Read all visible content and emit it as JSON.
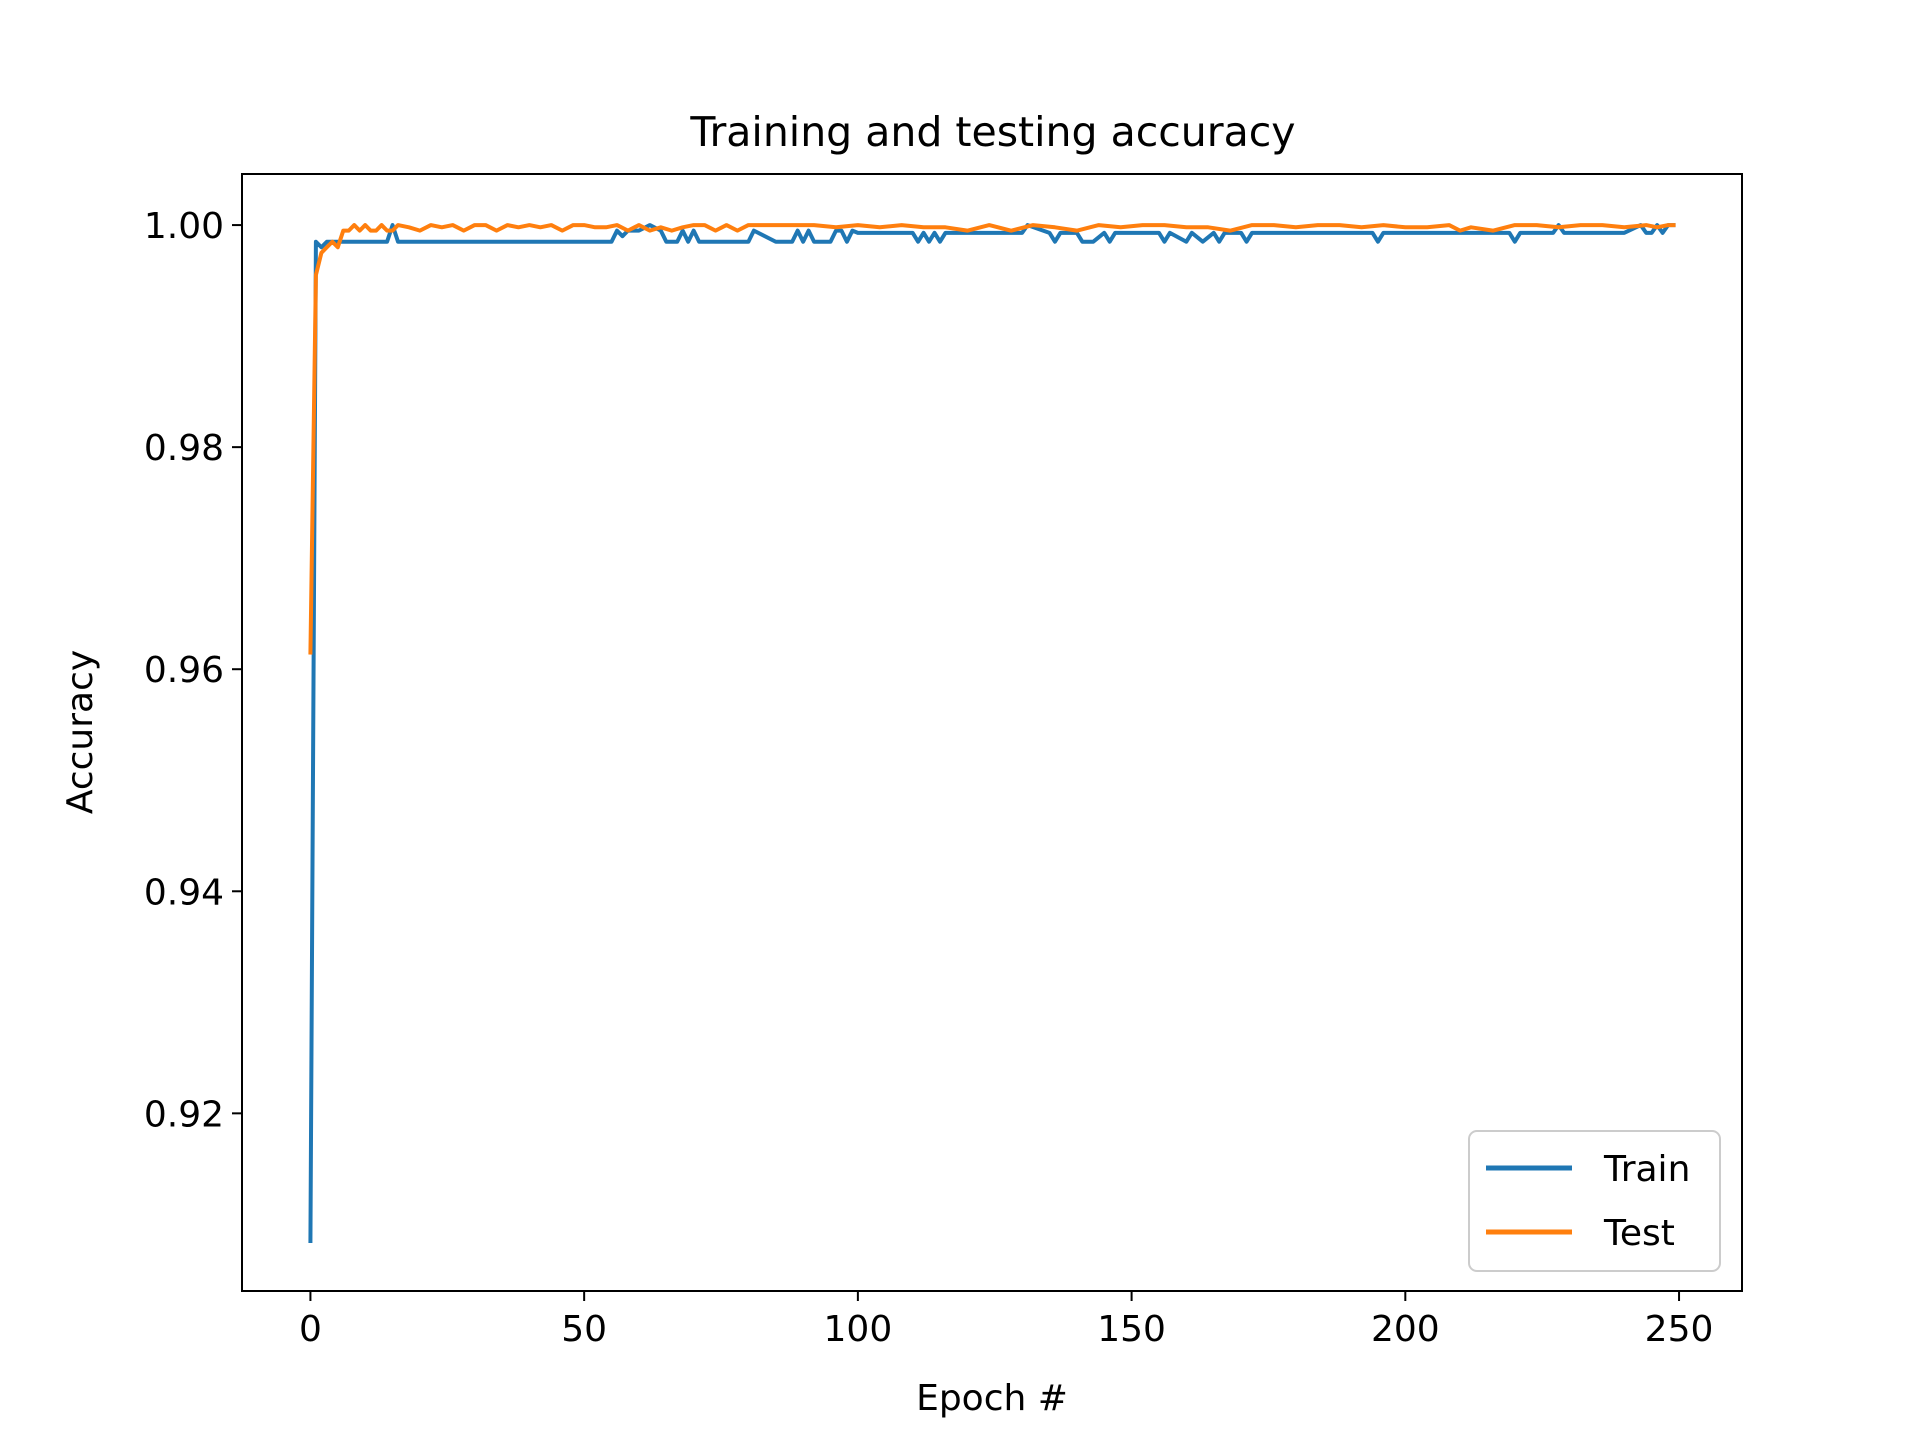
{
  "chart_data": {
    "type": "line",
    "title": "Training and testing accuracy",
    "xlabel": "Epoch #",
    "ylabel": "Accuracy",
    "xlim": [
      -12.5,
      261.5
    ],
    "ylim": [
      0.904,
      1.0046
    ],
    "xticks": [
      0,
      50,
      100,
      150,
      200,
      250
    ],
    "xtick_labels": [
      "0",
      "50",
      "100",
      "150",
      "200",
      "250"
    ],
    "yticks": [
      0.92,
      0.94,
      0.96,
      0.98,
      1.0
    ],
    "ytick_labels": [
      "0.92",
      "0.94",
      "0.96",
      "0.98",
      "1.00"
    ],
    "grid": false,
    "legend_position": "lower-right",
    "series": [
      {
        "name": "Train",
        "color": "#1f77b4",
        "x": [
          0,
          1,
          2,
          3,
          5,
          10,
          14,
          15,
          16,
          20,
          30,
          40,
          50,
          55,
          56,
          57,
          58,
          60,
          62,
          64,
          65,
          67,
          68,
          69,
          70,
          71,
          72,
          74,
          75,
          80,
          81,
          85,
          88,
          89,
          90,
          91,
          92,
          95,
          96,
          97,
          98,
          99,
          100,
          105,
          110,
          111,
          112,
          113,
          114,
          115,
          116,
          118,
          120,
          125,
          130,
          131,
          135,
          136,
          137,
          140,
          141,
          143,
          145,
          146,
          147,
          150,
          155,
          156,
          157,
          160,
          161,
          163,
          165,
          166,
          167,
          170,
          171,
          172,
          175,
          180,
          185,
          190,
          194,
          195,
          196,
          200,
          205,
          210,
          215,
          219,
          220,
          221,
          225,
          227,
          228,
          229,
          230,
          235,
          238,
          240,
          243,
          244,
          245,
          246,
          247,
          248,
          249
        ],
        "y": [
          0.9085,
          0.9985,
          0.998,
          0.9985,
          0.9985,
          0.9985,
          0.9985,
          1.0,
          0.9985,
          0.9985,
          0.9985,
          0.9985,
          0.9985,
          0.9985,
          0.9995,
          0.999,
          0.9995,
          0.9995,
          1.0,
          0.9995,
          0.9985,
          0.9985,
          0.9995,
          0.9985,
          0.9995,
          0.9985,
          0.9985,
          0.9985,
          0.9985,
          0.9985,
          0.9995,
          0.9985,
          0.9985,
          0.9995,
          0.9985,
          0.9995,
          0.9985,
          0.9985,
          0.9995,
          0.9995,
          0.9985,
          0.9995,
          0.9993,
          0.9993,
          0.9993,
          0.9985,
          0.9993,
          0.9985,
          0.9993,
          0.9985,
          0.9993,
          0.9993,
          0.9993,
          0.9993,
          0.9993,
          1.0,
          0.9993,
          0.9985,
          0.9993,
          0.9993,
          0.9985,
          0.9985,
          0.9993,
          0.9985,
          0.9993,
          0.9993,
          0.9993,
          0.9985,
          0.9993,
          0.9985,
          0.9993,
          0.9985,
          0.9993,
          0.9985,
          0.9993,
          0.9993,
          0.9985,
          0.9993,
          0.9993,
          0.9993,
          0.9993,
          0.9993,
          0.9993,
          0.9985,
          0.9993,
          0.9993,
          0.9993,
          0.9993,
          0.9993,
          0.9993,
          0.9985,
          0.9993,
          0.9993,
          0.9993,
          1.0,
          0.9993,
          0.9993,
          0.9993,
          0.9993,
          0.9993,
          1.0,
          0.9993,
          0.9993,
          1.0,
          0.9993,
          1.0,
          1.0
        ]
      },
      {
        "name": "Test",
        "color": "#ff7f0e",
        "x": [
          0,
          1,
          2,
          3,
          4,
          5,
          6,
          7,
          8,
          9,
          10,
          11,
          12,
          13,
          14,
          15,
          16,
          18,
          20,
          22,
          24,
          26,
          28,
          30,
          32,
          34,
          36,
          38,
          40,
          42,
          44,
          46,
          48,
          50,
          52,
          54,
          56,
          58,
          60,
          62,
          64,
          66,
          68,
          70,
          72,
          74,
          76,
          78,
          80,
          84,
          88,
          92,
          96,
          100,
          104,
          108,
          112,
          116,
          120,
          124,
          128,
          132,
          136,
          140,
          144,
          148,
          152,
          156,
          160,
          164,
          168,
          172,
          176,
          180,
          184,
          188,
          192,
          196,
          200,
          204,
          208,
          210,
          212,
          216,
          220,
          224,
          228,
          232,
          236,
          240,
          244,
          246,
          248,
          249
        ],
        "y": [
          0.9615,
          0.9955,
          0.9975,
          0.998,
          0.9985,
          0.998,
          0.9995,
          0.9995,
          1.0,
          0.9995,
          1.0,
          0.9995,
          0.9995,
          1.0,
          0.9995,
          0.9995,
          1.0,
          0.9998,
          0.9995,
          1.0,
          0.9998,
          1.0,
          0.9995,
          1.0,
          1.0,
          0.9995,
          1.0,
          0.9998,
          1.0,
          0.9998,
          1.0,
          0.9995,
          1.0,
          1.0,
          0.9998,
          0.9998,
          1.0,
          0.9995,
          1.0,
          0.9995,
          0.9998,
          0.9995,
          0.9998,
          1.0,
          1.0,
          0.9995,
          1.0,
          0.9995,
          1.0,
          1.0,
          1.0,
          1.0,
          0.9998,
          1.0,
          0.9998,
          1.0,
          0.9998,
          0.9998,
          0.9995,
          1.0,
          0.9995,
          1.0,
          0.9998,
          0.9995,
          1.0,
          0.9998,
          1.0,
          1.0,
          0.9998,
          0.9998,
          0.9995,
          1.0,
          1.0,
          0.9998,
          1.0,
          1.0,
          0.9998,
          1.0,
          0.9998,
          0.9998,
          1.0,
          0.9995,
          0.9998,
          0.9995,
          1.0,
          1.0,
          0.9998,
          1.0,
          1.0,
          0.9998,
          1.0,
          0.9998,
          1.0,
          1.0
        ]
      }
    ]
  }
}
